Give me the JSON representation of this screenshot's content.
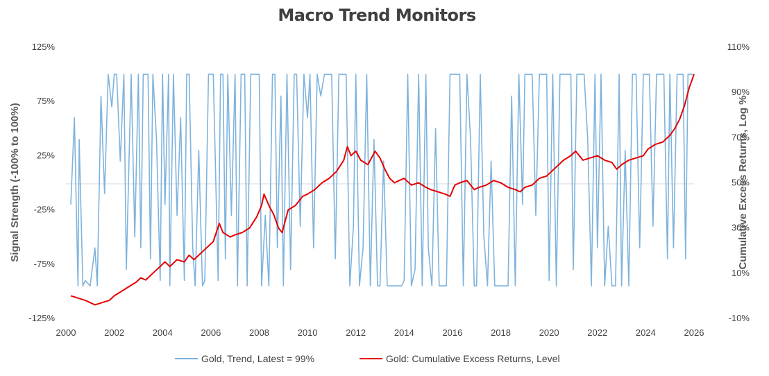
{
  "chart_data": {
    "type": "line",
    "title": "Macro Trend Monitors",
    "x_ticks": [
      "2000",
      "2002",
      "2004",
      "2006",
      "2008",
      "2010",
      "2012",
      "2014",
      "2016",
      "2018",
      "2020",
      "2022",
      "2024",
      "2026"
    ],
    "xlim": [
      2000,
      2026
    ],
    "y_left": {
      "label": "Signal Strength (-100% to 100%)",
      "ticks": [
        "125%",
        "75%",
        "25%",
        "-25%",
        "-75%",
        "-125%"
      ],
      "range": [
        -125,
        125
      ]
    },
    "y_right": {
      "label": "Cumulative Excess Returns, Log %",
      "ticks": [
        "110%",
        "90%",
        "70%",
        "50%",
        "30%",
        "10%",
        "-10%"
      ],
      "range": [
        -10,
        110
      ]
    },
    "grid": false,
    "legend_position": "bottom",
    "series": [
      {
        "name": "Gold, Trend, Latest = 99%",
        "axis": "left",
        "color": "#7FB3DC",
        "x": [
          2000.2,
          2000.35,
          2000.5,
          2000.55,
          2000.7,
          2000.8,
          2001.0,
          2001.2,
          2001.3,
          2001.45,
          2001.6,
          2001.75,
          2001.9,
          2002.0,
          2002.1,
          2002.25,
          2002.4,
          2002.5,
          2002.7,
          2002.85,
          2003.0,
          2003.1,
          2003.2,
          2003.4,
          2003.5,
          2003.6,
          2003.75,
          2003.9,
          2004.0,
          2004.1,
          2004.25,
          2004.3,
          2004.45,
          2004.6,
          2004.75,
          2004.9,
          2005.0,
          2005.1,
          2005.25,
          2005.35,
          2005.5,
          2005.65,
          2005.75,
          2005.9,
          2006.0,
          2006.1,
          2006.3,
          2006.4,
          2006.5,
          2006.6,
          2006.7,
          2006.85,
          2007.0,
          2007.1,
          2007.25,
          2007.4,
          2007.5,
          2007.65,
          2007.8,
          2007.9,
          2008.0,
          2008.1,
          2008.25,
          2008.4,
          2008.55,
          2008.65,
          2008.75,
          2008.9,
          2009.0,
          2009.15,
          2009.3,
          2009.45,
          2009.55,
          2009.7,
          2009.85,
          2010.0,
          2010.1,
          2010.25,
          2010.4,
          2010.55,
          2010.7,
          2010.85,
          2011.0,
          2011.15,
          2011.3,
          2011.45,
          2011.6,
          2011.75,
          2011.9,
          2012.0,
          2012.15,
          2012.3,
          2012.45,
          2012.6,
          2012.75,
          2012.9,
          2013.0,
          2013.15,
          2013.3,
          2013.5,
          2013.7,
          2013.9,
          2014.0,
          2014.15,
          2014.3,
          2014.45,
          2014.6,
          2014.75,
          2014.9,
          2015.0,
          2015.15,
          2015.3,
          2015.45,
          2015.6,
          2015.75,
          2015.9,
          2016.0,
          2016.15,
          2016.3,
          2016.45,
          2016.6,
          2016.75,
          2016.9,
          2017.0,
          2017.15,
          2017.3,
          2017.45,
          2017.6,
          2017.75,
          2017.9,
          2018.0,
          2018.15,
          2018.3,
          2018.45,
          2018.6,
          2018.75,
          2018.9,
          2019.0,
          2019.15,
          2019.3,
          2019.45,
          2019.6,
          2019.75,
          2019.9,
          2020.0,
          2020.15,
          2020.3,
          2020.45,
          2020.6,
          2020.75,
          2020.9,
          2021.0,
          2021.15,
          2021.3,
          2021.45,
          2021.6,
          2021.75,
          2021.9,
          2022.0,
          2022.15,
          2022.3,
          2022.45,
          2022.6,
          2022.75,
          2022.9,
          2023.0,
          2023.15,
          2023.3,
          2023.45,
          2023.6,
          2023.75,
          2023.9,
          2024.0,
          2024.15,
          2024.3,
          2024.45,
          2024.6,
          2024.75,
          2024.9,
          2025.0,
          2025.15,
          2025.3,
          2025.45,
          2025.55,
          2025.65,
          2025.75,
          2025.85,
          2025.95,
          2026.0
        ],
        "values": [
          -20,
          60,
          -95,
          40,
          -95,
          -90,
          -95,
          -60,
          -95,
          80,
          -10,
          100,
          70,
          100,
          100,
          20,
          100,
          -80,
          100,
          -50,
          100,
          -60,
          100,
          100,
          -70,
          100,
          40,
          -90,
          100,
          -20,
          100,
          -95,
          100,
          -30,
          60,
          -90,
          100,
          100,
          -60,
          -95,
          30,
          -95,
          -90,
          100,
          100,
          100,
          -90,
          100,
          100,
          -70,
          100,
          -30,
          100,
          -95,
          100,
          100,
          -95,
          100,
          100,
          100,
          100,
          -95,
          -30,
          -95,
          100,
          100,
          -60,
          80,
          -95,
          100,
          -80,
          100,
          100,
          -40,
          100,
          60,
          100,
          -60,
          100,
          80,
          100,
          100,
          100,
          -70,
          100,
          100,
          100,
          -95,
          -40,
          100,
          -95,
          -60,
          100,
          -95,
          40,
          -95,
          -95,
          20,
          -95,
          -95,
          -95,
          -95,
          -90,
          100,
          -95,
          -80,
          100,
          -95,
          100,
          -60,
          -95,
          50,
          -95,
          -95,
          -95,
          100,
          100,
          100,
          100,
          -95,
          100,
          40,
          -95,
          -95,
          100,
          -50,
          -95,
          20,
          -95,
          -95,
          -95,
          -95,
          -95,
          80,
          -95,
          100,
          -20,
          100,
          100,
          100,
          -30,
          100,
          100,
          100,
          -90,
          100,
          -95,
          100,
          100,
          100,
          100,
          -80,
          100,
          100,
          100,
          40,
          -95,
          100,
          -60,
          100,
          -95,
          -40,
          -95,
          -95,
          100,
          -95,
          30,
          -95,
          100,
          100,
          -60,
          100,
          100,
          100,
          -40,
          100,
          100,
          100,
          -70,
          100,
          -60,
          100,
          100,
          100,
          -70,
          100,
          100,
          100,
          99
        ]
      },
      {
        "name": "Gold: Cumulative Excess Returns, Level",
        "axis": "right",
        "color": "#E50000",
        "x": [
          2000.2,
          2000.5,
          2000.8,
          2001.0,
          2001.2,
          2001.5,
          2001.8,
          2002.0,
          2002.3,
          2002.6,
          2002.9,
          2003.1,
          2003.3,
          2003.6,
          2003.9,
          2004.1,
          2004.3,
          2004.6,
          2004.9,
          2005.1,
          2005.3,
          2005.6,
          2005.9,
          2006.1,
          2006.35,
          2006.5,
          2006.8,
          2007.0,
          2007.3,
          2007.6,
          2007.9,
          2008.1,
          2008.2,
          2008.4,
          2008.6,
          2008.8,
          2008.95,
          2009.2,
          2009.5,
          2009.8,
          2010.0,
          2010.3,
          2010.6,
          2010.9,
          2011.2,
          2011.5,
          2011.65,
          2011.8,
          2012.0,
          2012.2,
          2012.5,
          2012.8,
          2013.0,
          2013.2,
          2013.4,
          2013.6,
          2013.8,
          2014.0,
          2014.3,
          2014.6,
          2014.9,
          2015.1,
          2015.4,
          2015.7,
          2015.9,
          2016.1,
          2016.3,
          2016.6,
          2016.9,
          2017.1,
          2017.4,
          2017.7,
          2018.0,
          2018.3,
          2018.6,
          2018.8,
          2019.0,
          2019.3,
          2019.6,
          2019.9,
          2020.1,
          2020.4,
          2020.6,
          2020.9,
          2021.1,
          2021.4,
          2021.7,
          2022.0,
          2022.3,
          2022.6,
          2022.8,
          2023.0,
          2023.3,
          2023.6,
          2023.9,
          2024.1,
          2024.4,
          2024.7,
          2025.0,
          2025.2,
          2025.4,
          2025.6,
          2025.8,
          2026.0
        ],
        "values": [
          0,
          -1,
          -2,
          -3,
          -4,
          -3,
          -2,
          0,
          2,
          4,
          6,
          8,
          7,
          10,
          13,
          15,
          13,
          16,
          15,
          18,
          16,
          19,
          22,
          24,
          32,
          28,
          26,
          27,
          28,
          30,
          35,
          40,
          45,
          40,
          36,
          30,
          28,
          38,
          40,
          44,
          45,
          47,
          50,
          52,
          55,
          60,
          66,
          62,
          64,
          60,
          58,
          64,
          61,
          56,
          52,
          50,
          51,
          52,
          49,
          50,
          48,
          47,
          46,
          45,
          44,
          49,
          50,
          51,
          47,
          48,
          49,
          51,
          50,
          48,
          47,
          46,
          48,
          49,
          52,
          53,
          55,
          58,
          60,
          62,
          64,
          60,
          61,
          62,
          60,
          59,
          56,
          58,
          60,
          61,
          62,
          65,
          67,
          68,
          71,
          74,
          78,
          84,
          92,
          98
        ]
      }
    ]
  }
}
